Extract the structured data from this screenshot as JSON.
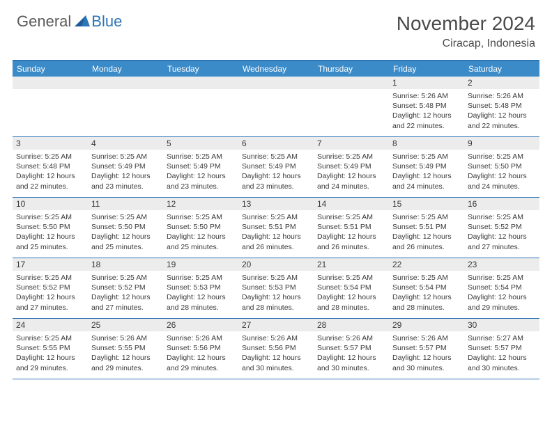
{
  "logo": {
    "general": "General",
    "blue": "Blue"
  },
  "title": "November 2024",
  "location": "Ciracap, Indonesia",
  "dow": [
    "Sunday",
    "Monday",
    "Tuesday",
    "Wednesday",
    "Thursday",
    "Friday",
    "Saturday"
  ],
  "colors": {
    "headerBar": "#3b8bc9",
    "borderBlue": "#2e75b6",
    "dayBar": "#ececec",
    "text": "#3a3a3a",
    "bg": "#ffffff"
  },
  "weeks": [
    [
      null,
      null,
      null,
      null,
      null,
      {
        "n": "1",
        "sr": "5:26 AM",
        "ss": "5:48 PM",
        "dh": "12",
        "dm": "22"
      },
      {
        "n": "2",
        "sr": "5:26 AM",
        "ss": "5:48 PM",
        "dh": "12",
        "dm": "22"
      }
    ],
    [
      {
        "n": "3",
        "sr": "5:25 AM",
        "ss": "5:48 PM",
        "dh": "12",
        "dm": "22"
      },
      {
        "n": "4",
        "sr": "5:25 AM",
        "ss": "5:49 PM",
        "dh": "12",
        "dm": "23"
      },
      {
        "n": "5",
        "sr": "5:25 AM",
        "ss": "5:49 PM",
        "dh": "12",
        "dm": "23"
      },
      {
        "n": "6",
        "sr": "5:25 AM",
        "ss": "5:49 PM",
        "dh": "12",
        "dm": "23"
      },
      {
        "n": "7",
        "sr": "5:25 AM",
        "ss": "5:49 PM",
        "dh": "12",
        "dm": "24"
      },
      {
        "n": "8",
        "sr": "5:25 AM",
        "ss": "5:49 PM",
        "dh": "12",
        "dm": "24"
      },
      {
        "n": "9",
        "sr": "5:25 AM",
        "ss": "5:50 PM",
        "dh": "12",
        "dm": "24"
      }
    ],
    [
      {
        "n": "10",
        "sr": "5:25 AM",
        "ss": "5:50 PM",
        "dh": "12",
        "dm": "25"
      },
      {
        "n": "11",
        "sr": "5:25 AM",
        "ss": "5:50 PM",
        "dh": "12",
        "dm": "25"
      },
      {
        "n": "12",
        "sr": "5:25 AM",
        "ss": "5:50 PM",
        "dh": "12",
        "dm": "25"
      },
      {
        "n": "13",
        "sr": "5:25 AM",
        "ss": "5:51 PM",
        "dh": "12",
        "dm": "26"
      },
      {
        "n": "14",
        "sr": "5:25 AM",
        "ss": "5:51 PM",
        "dh": "12",
        "dm": "26"
      },
      {
        "n": "15",
        "sr": "5:25 AM",
        "ss": "5:51 PM",
        "dh": "12",
        "dm": "26"
      },
      {
        "n": "16",
        "sr": "5:25 AM",
        "ss": "5:52 PM",
        "dh": "12",
        "dm": "27"
      }
    ],
    [
      {
        "n": "17",
        "sr": "5:25 AM",
        "ss": "5:52 PM",
        "dh": "12",
        "dm": "27"
      },
      {
        "n": "18",
        "sr": "5:25 AM",
        "ss": "5:52 PM",
        "dh": "12",
        "dm": "27"
      },
      {
        "n": "19",
        "sr": "5:25 AM",
        "ss": "5:53 PM",
        "dh": "12",
        "dm": "28"
      },
      {
        "n": "20",
        "sr": "5:25 AM",
        "ss": "5:53 PM",
        "dh": "12",
        "dm": "28"
      },
      {
        "n": "21",
        "sr": "5:25 AM",
        "ss": "5:54 PM",
        "dh": "12",
        "dm": "28"
      },
      {
        "n": "22",
        "sr": "5:25 AM",
        "ss": "5:54 PM",
        "dh": "12",
        "dm": "28"
      },
      {
        "n": "23",
        "sr": "5:25 AM",
        "ss": "5:54 PM",
        "dh": "12",
        "dm": "29"
      }
    ],
    [
      {
        "n": "24",
        "sr": "5:25 AM",
        "ss": "5:55 PM",
        "dh": "12",
        "dm": "29"
      },
      {
        "n": "25",
        "sr": "5:26 AM",
        "ss": "5:55 PM",
        "dh": "12",
        "dm": "29"
      },
      {
        "n": "26",
        "sr": "5:26 AM",
        "ss": "5:56 PM",
        "dh": "12",
        "dm": "29"
      },
      {
        "n": "27",
        "sr": "5:26 AM",
        "ss": "5:56 PM",
        "dh": "12",
        "dm": "30"
      },
      {
        "n": "28",
        "sr": "5:26 AM",
        "ss": "5:57 PM",
        "dh": "12",
        "dm": "30"
      },
      {
        "n": "29",
        "sr": "5:26 AM",
        "ss": "5:57 PM",
        "dh": "12",
        "dm": "30"
      },
      {
        "n": "30",
        "sr": "5:27 AM",
        "ss": "5:57 PM",
        "dh": "12",
        "dm": "30"
      }
    ]
  ],
  "labels": {
    "sunrise": "Sunrise: ",
    "sunset": "Sunset: ",
    "daylightA": "Daylight: ",
    "daylightB": " hours",
    "daylightC": "and ",
    "daylightD": " minutes."
  }
}
